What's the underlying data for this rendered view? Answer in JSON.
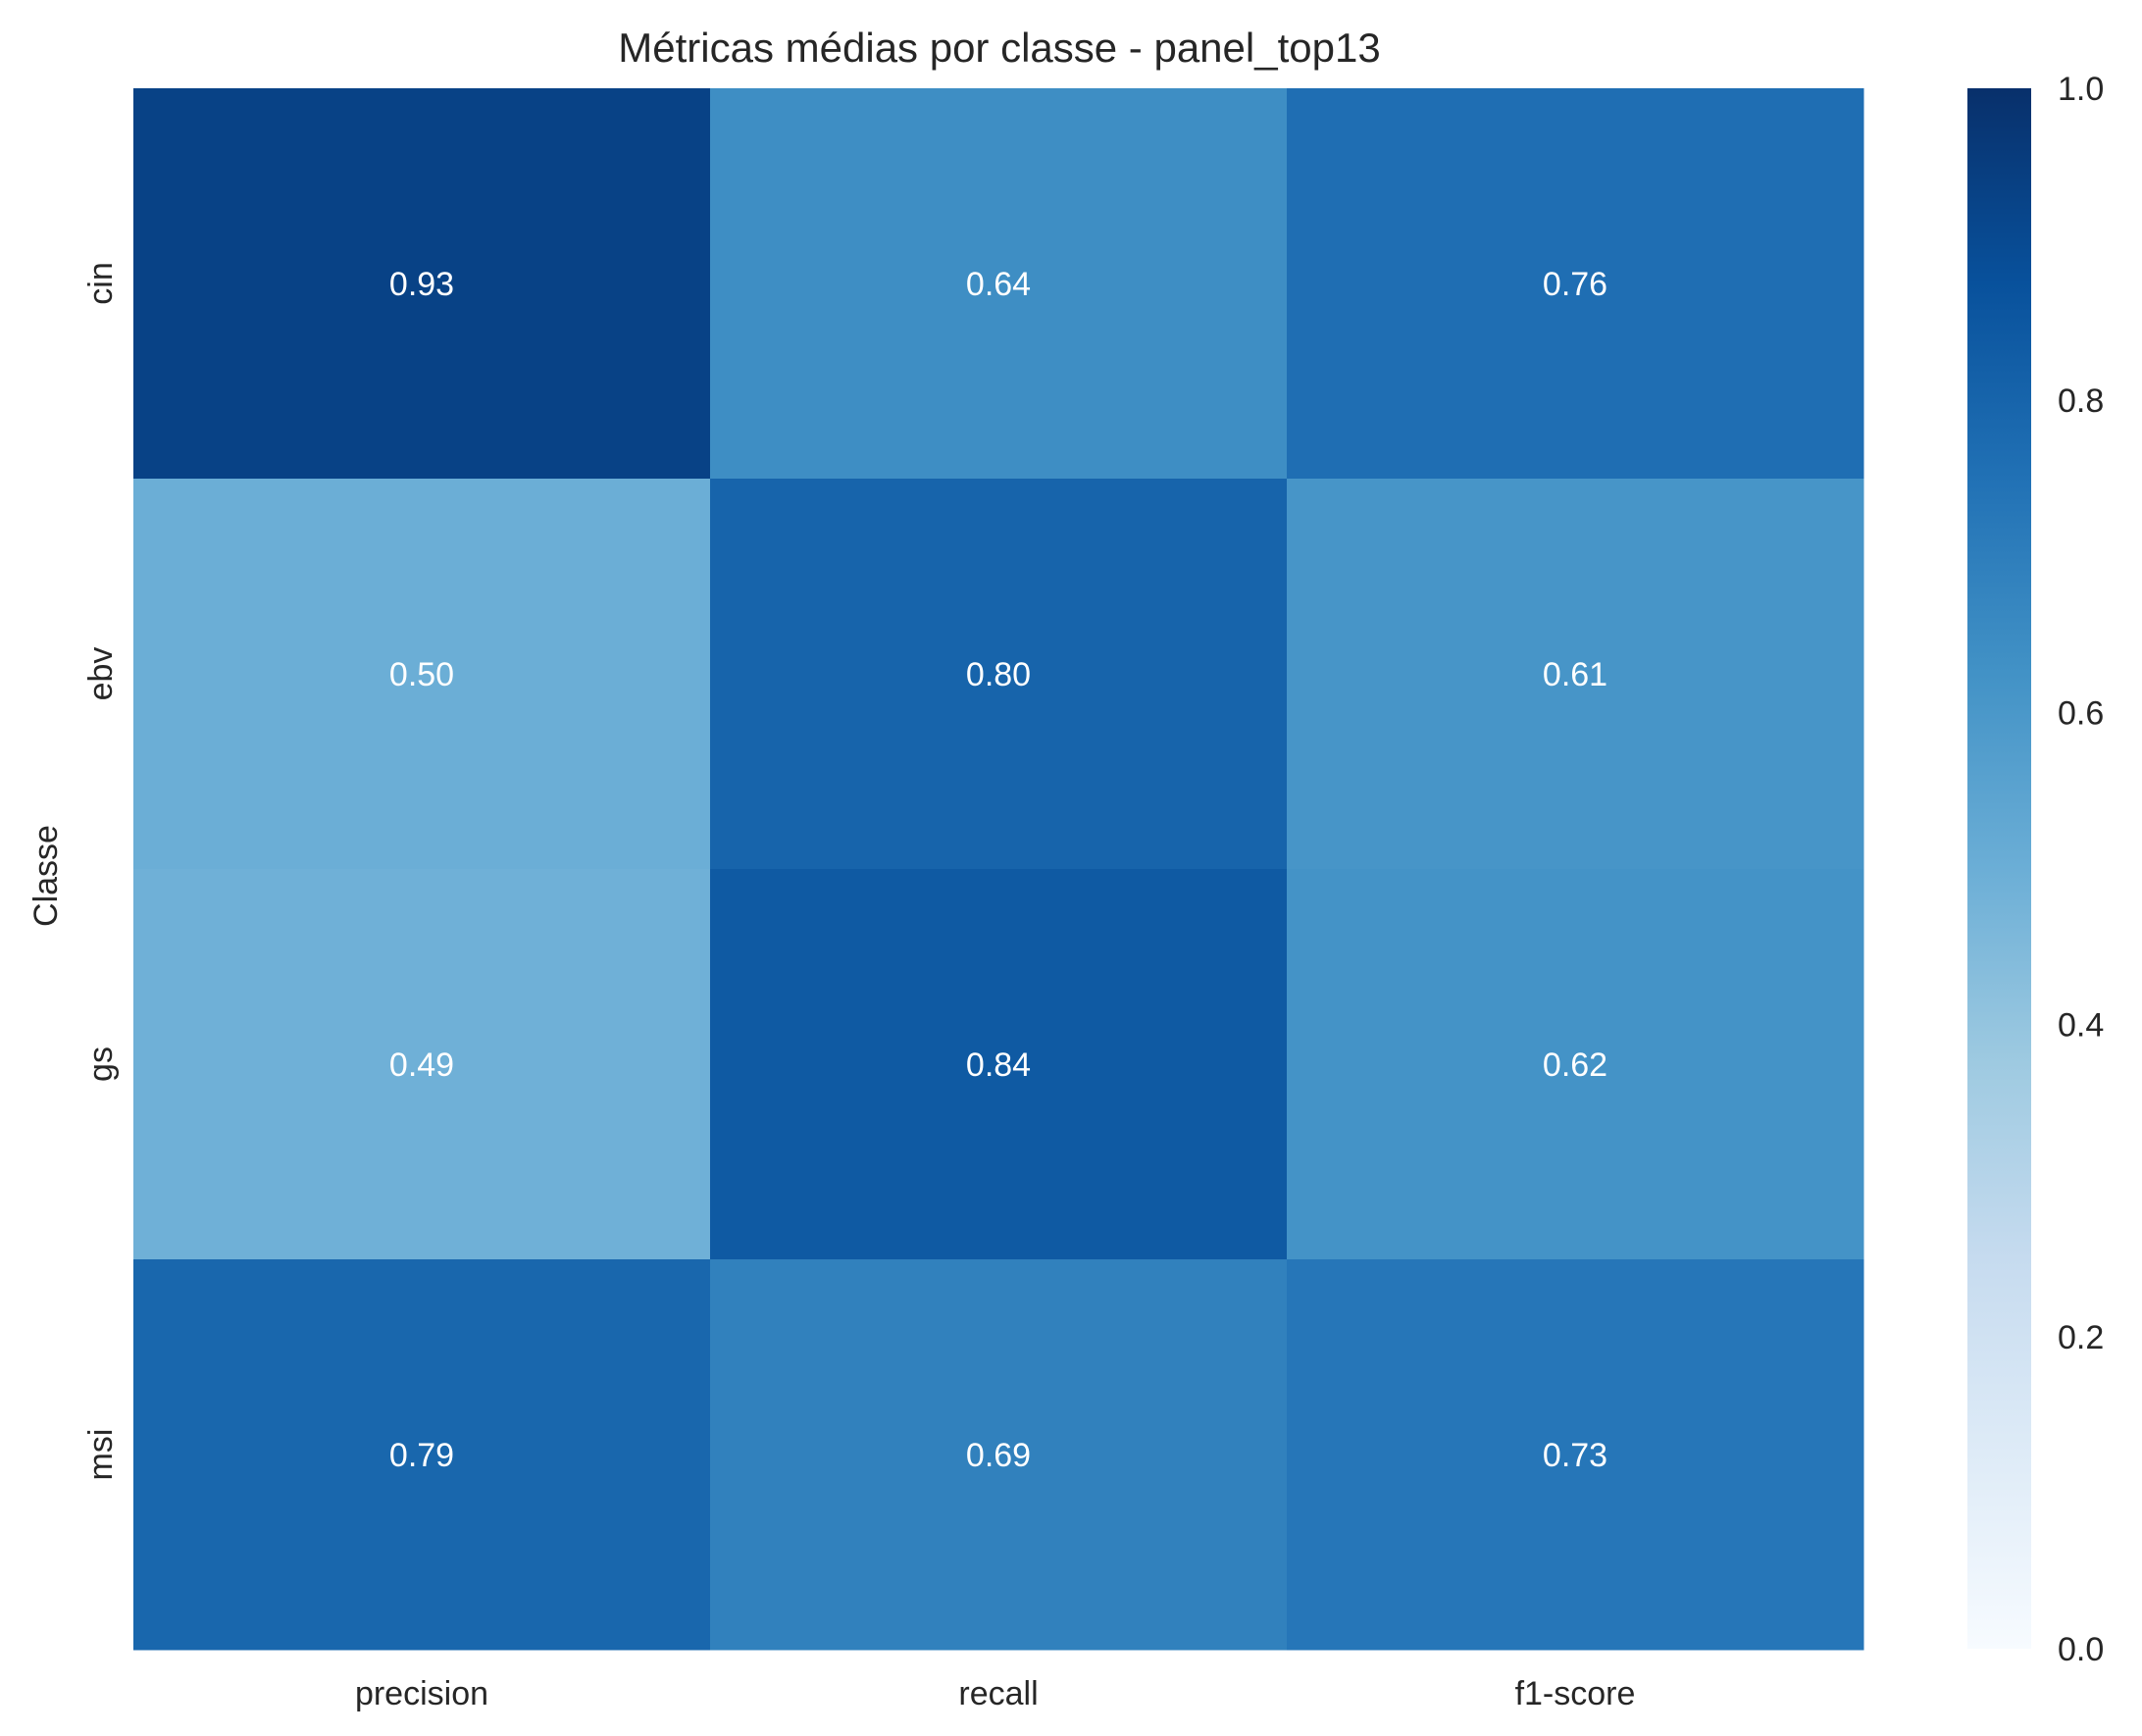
{
  "chart_data": {
    "type": "heatmap",
    "title": "Métricas médias por classe - panel_top13",
    "xlabel": "",
    "ylabel": "Classe",
    "x_categories": [
      "precision",
      "recall",
      "f1-score"
    ],
    "y_categories": [
      "cin",
      "ebv",
      "gs",
      "msi"
    ],
    "values": [
      [
        0.93,
        0.64,
        0.76
      ],
      [
        0.5,
        0.8,
        0.61
      ],
      [
        0.49,
        0.84,
        0.62
      ],
      [
        0.79,
        0.69,
        0.73
      ]
    ],
    "annotations": [
      [
        "0.93",
        "0.64",
        "0.76"
      ],
      [
        "0.50",
        "0.80",
        "0.61"
      ],
      [
        "0.49",
        "0.84",
        "0.62"
      ],
      [
        "0.79",
        "0.69",
        "0.73"
      ]
    ],
    "colorbar": {
      "range": [
        0.0,
        1.0
      ],
      "ticks": [
        "0.0",
        "0.2",
        "0.4",
        "0.6",
        "0.8",
        "1.0"
      ],
      "colormap": "Blues"
    },
    "grid": false
  }
}
